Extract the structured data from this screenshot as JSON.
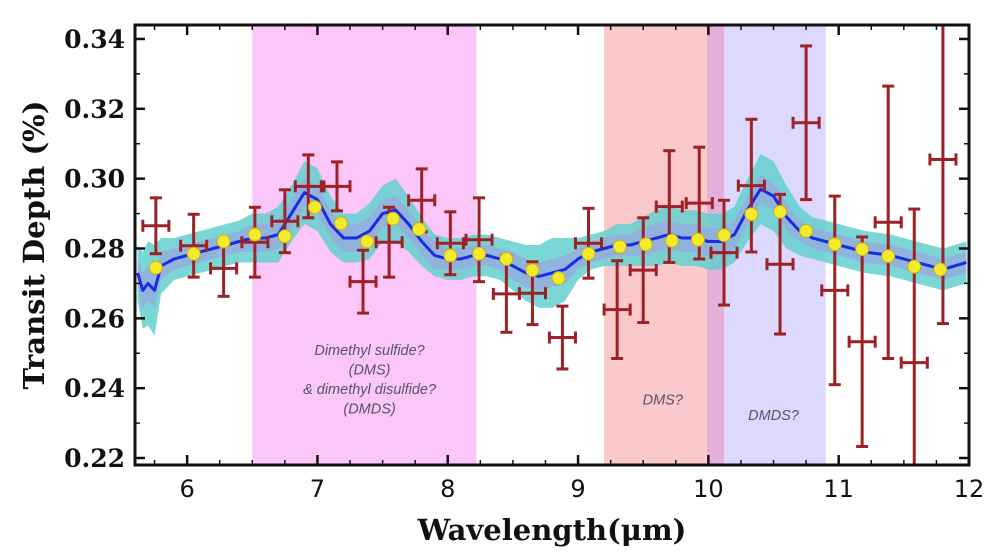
{
  "chart_data": {
    "type": "scatter",
    "xlabel": "Wavelength(μm)",
    "ylabel": "Transit Depth (%)",
    "xlim": [
      5.6,
      12.0
    ],
    "ylim": [
      0.218,
      0.344
    ],
    "xticks": [
      6,
      7,
      8,
      9,
      10,
      11,
      12
    ],
    "yticks": [
      0.22,
      0.24,
      0.26,
      0.28,
      0.3,
      0.32,
      0.34
    ],
    "ytick_labels": [
      "0.22",
      "0.24",
      "0.26",
      "0.28",
      "0.30",
      "0.32",
      "0.34"
    ],
    "colors": {
      "band_dms_dmds": "#fcc6f8",
      "band_dms": "#fbc8cc",
      "band_overlap": "#e4b0da",
      "band_dmds": "#dcd8ff",
      "outer_envelope": "#63d0cf",
      "inner_envelope": "#9aa8dd",
      "model_line": "#1a2be6",
      "binned_points": "#f2ea2a",
      "data_points": "#9c2226"
    },
    "bands": [
      {
        "name": "Dimethyl sulfide / dimethyl disulfide",
        "x_range": [
          6.5,
          8.22
        ],
        "color": "#fcc6f8",
        "label_lines": [
          "Dimethyl sulfide?",
          "(DMS)",
          "& dimethyl disulfide?",
          "(DMDS)"
        ],
        "label_x": 7.4,
        "label_y": 0.2495
      },
      {
        "name": "DMS",
        "x_range": [
          9.2,
          10.12
        ],
        "color": "#fbc8cc",
        "label_lines": [
          "DMS?"
        ],
        "label_x": 9.65,
        "label_y": 0.2353
      },
      {
        "name": "DMDS",
        "x_range": [
          9.99,
          10.9
        ],
        "color": "#dcd8ff",
        "label_lines": [
          "DMDS?"
        ],
        "label_x": 10.5,
        "label_y": 0.2309
      }
    ],
    "model": {
      "x": [
        5.62,
        5.66,
        5.7,
        5.75,
        5.8,
        5.9,
        6.0,
        6.1,
        6.2,
        6.3,
        6.4,
        6.5,
        6.6,
        6.7,
        6.8,
        6.9,
        7.0,
        7.1,
        7.2,
        7.3,
        7.4,
        7.5,
        7.6,
        7.7,
        7.8,
        7.9,
        8.0,
        8.1,
        8.2,
        8.3,
        8.4,
        8.5,
        8.6,
        8.7,
        8.8,
        8.9,
        9.0,
        9.1,
        9.2,
        9.3,
        9.4,
        9.5,
        9.6,
        9.7,
        9.8,
        9.9,
        10.0,
        10.1,
        10.2,
        10.3,
        10.4,
        10.5,
        10.6,
        10.7,
        10.8,
        10.9,
        11.0,
        11.2,
        11.4,
        11.6,
        11.8,
        11.98
      ],
      "y": [
        0.273,
        0.268,
        0.27,
        0.268,
        0.275,
        0.277,
        0.278,
        0.279,
        0.28,
        0.281,
        0.282,
        0.283,
        0.283,
        0.284,
        0.29,
        0.296,
        0.294,
        0.287,
        0.283,
        0.283,
        0.285,
        0.29,
        0.291,
        0.287,
        0.282,
        0.278,
        0.277,
        0.277,
        0.278,
        0.278,
        0.277,
        0.275,
        0.273,
        0.272,
        0.273,
        0.274,
        0.277,
        0.279,
        0.28,
        0.281,
        0.281,
        0.282,
        0.283,
        0.284,
        0.283,
        0.283,
        0.282,
        0.282,
        0.284,
        0.291,
        0.297,
        0.295,
        0.289,
        0.285,
        0.283,
        0.282,
        0.281,
        0.279,
        0.278,
        0.276,
        0.274,
        0.276
      ],
      "inner_halfwidth": [
        0.004,
        0.005,
        0.005,
        0.005,
        0.004,
        0.003,
        0.003,
        0.003,
        0.003,
        0.003,
        0.003,
        0.004,
        0.004,
        0.004,
        0.004,
        0.004,
        0.004,
        0.004,
        0.004,
        0.004,
        0.004,
        0.004,
        0.004,
        0.004,
        0.004,
        0.004,
        0.003,
        0.003,
        0.003,
        0.003,
        0.003,
        0.004,
        0.004,
        0.004,
        0.004,
        0.004,
        0.003,
        0.003,
        0.003,
        0.003,
        0.003,
        0.004,
        0.004,
        0.004,
        0.004,
        0.004,
        0.004,
        0.004,
        0.004,
        0.004,
        0.004,
        0.004,
        0.004,
        0.003,
        0.003,
        0.003,
        0.003,
        0.003,
        0.003,
        0.003,
        0.003,
        0.003
      ],
      "outer_halfwidth": [
        0.008,
        0.011,
        0.012,
        0.013,
        0.008,
        0.006,
        0.006,
        0.006,
        0.006,
        0.006,
        0.006,
        0.007,
        0.007,
        0.008,
        0.008,
        0.009,
        0.009,
        0.008,
        0.007,
        0.007,
        0.008,
        0.008,
        0.009,
        0.008,
        0.007,
        0.006,
        0.006,
        0.006,
        0.006,
        0.006,
        0.006,
        0.007,
        0.008,
        0.009,
        0.01,
        0.009,
        0.006,
        0.005,
        0.005,
        0.006,
        0.006,
        0.007,
        0.008,
        0.008,
        0.008,
        0.008,
        0.008,
        0.008,
        0.008,
        0.009,
        0.01,
        0.01,
        0.009,
        0.007,
        0.006,
        0.006,
        0.006,
        0.006,
        0.006,
        0.006,
        0.006,
        0.006
      ]
    },
    "binned_points": {
      "x": [
        5.76,
        6.05,
        6.28,
        6.52,
        6.75,
        6.98,
        7.18,
        7.38,
        7.58,
        7.78,
        8.02,
        8.24,
        8.45,
        8.65,
        8.85,
        9.08,
        9.32,
        9.52,
        9.72,
        9.92,
        10.12,
        10.33,
        10.55,
        10.75,
        10.97,
        11.18,
        11.38,
        11.58,
        11.78
      ],
      "y": [
        0.2745,
        0.2785,
        0.282,
        0.284,
        0.2835,
        0.2918,
        0.2872,
        0.282,
        0.2885,
        0.2855,
        0.278,
        0.2785,
        0.277,
        0.2738,
        0.2715,
        0.2785,
        0.2805,
        0.2812,
        0.2822,
        0.2825,
        0.2838,
        0.2898,
        0.2905,
        0.285,
        0.2812,
        0.2798,
        0.2778,
        0.2748,
        0.274
      ]
    },
    "data_points": {
      "x": [
        5.76,
        6.05,
        6.28,
        6.52,
        6.75,
        6.93,
        7.15,
        7.35,
        7.55,
        7.8,
        8.02,
        8.24,
        8.45,
        8.65,
        8.88,
        9.08,
        9.3,
        9.5,
        9.7,
        9.93,
        10.12,
        10.33,
        10.55,
        10.75,
        10.97,
        11.18,
        11.38,
        11.58,
        11.8
      ],
      "y": [
        0.2865,
        0.2808,
        0.2743,
        0.2818,
        0.2878,
        0.2978,
        0.2978,
        0.2705,
        0.2818,
        0.2938,
        0.2815,
        0.2825,
        0.267,
        0.2672,
        0.2545,
        0.2815,
        0.2625,
        0.2738,
        0.292,
        0.293,
        0.2788,
        0.298,
        0.2755,
        0.316,
        0.268,
        0.2533,
        0.2875,
        0.2473,
        0.3055
      ],
      "yerr": [
        0.008,
        0.009,
        0.008,
        0.01,
        0.009,
        0.009,
        0.007,
        0.009,
        0.01,
        0.009,
        0.009,
        0.012,
        0.011,
        0.009,
        0.009,
        0.01,
        0.014,
        0.015,
        0.016,
        0.016,
        0.015,
        0.019,
        0.02,
        0.022,
        0.027,
        0.03,
        0.039,
        0.044,
        0.047
      ],
      "xerr": [
        0.1,
        0.1,
        0.1,
        0.1,
        0.1,
        0.1,
        0.1,
        0.1,
        0.1,
        0.1,
        0.1,
        0.1,
        0.1,
        0.1,
        0.1,
        0.1,
        0.1,
        0.1,
        0.1,
        0.1,
        0.1,
        0.1,
        0.1,
        0.1,
        0.1,
        0.1,
        0.1,
        0.1,
        0.1
      ]
    }
  }
}
